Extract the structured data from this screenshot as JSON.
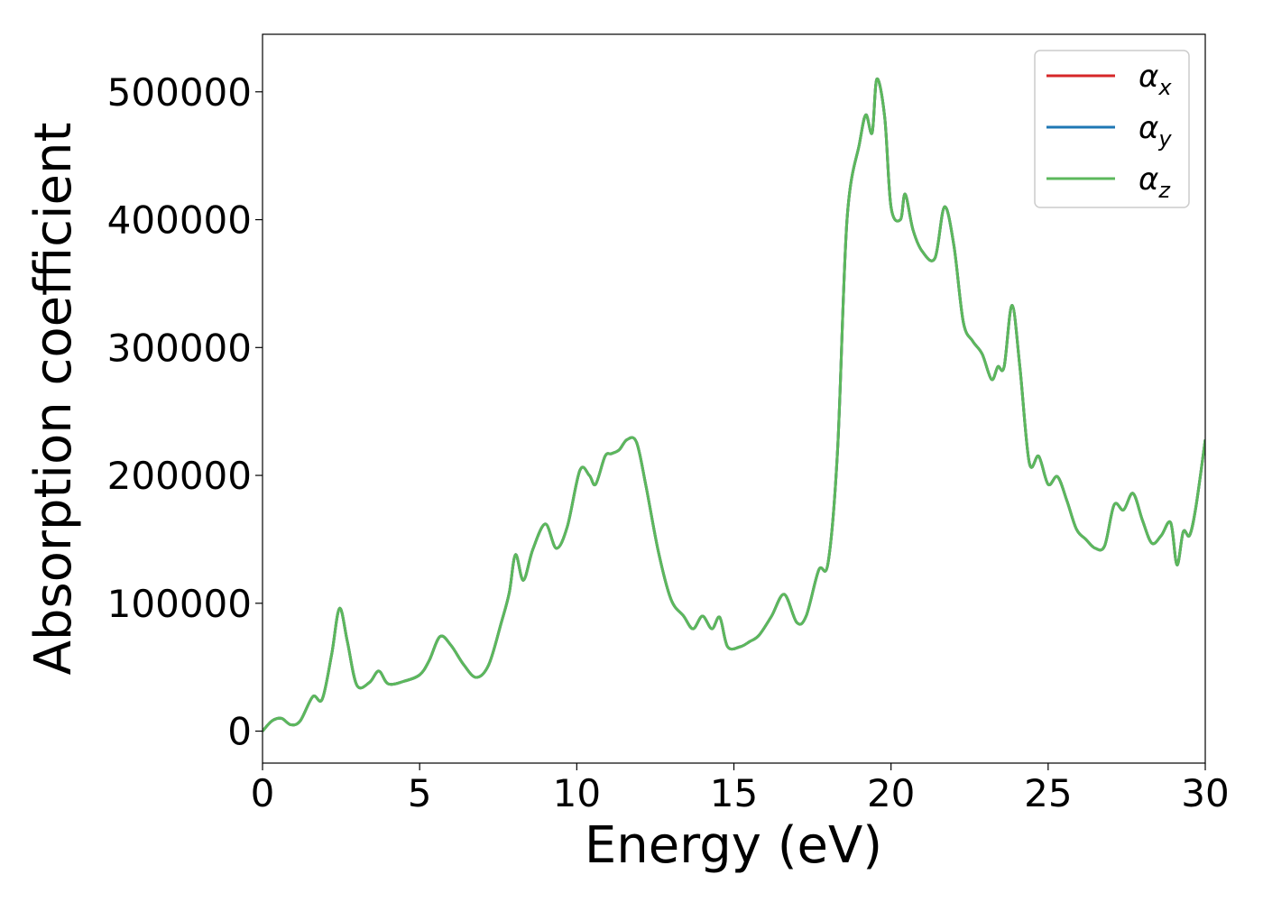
{
  "chart_data": {
    "type": "line",
    "title": "",
    "xlabel": "Energy (eV)",
    "ylabel": "Absorption coefficient",
    "xlim": [
      0,
      30
    ],
    "ylim": [
      -25000,
      545000
    ],
    "x_ticks": [
      0,
      5,
      10,
      15,
      20,
      25,
      30
    ],
    "x_tick_labels": [
      "0",
      "5",
      "10",
      "15",
      "20",
      "25",
      "30"
    ],
    "y_ticks": [
      0,
      100000,
      200000,
      300000,
      400000,
      500000
    ],
    "y_tick_labels": [
      "0",
      "100000",
      "200000",
      "300000",
      "400000",
      "500000"
    ],
    "grid": false,
    "legend_position": "top-right",
    "x": [
      0,
      0.3,
      0.6,
      0.9,
      1.2,
      1.6,
      1.9,
      2.2,
      2.45,
      2.7,
      3.0,
      3.4,
      3.7,
      4.0,
      4.5,
      5.0,
      5.3,
      5.65,
      6.0,
      6.4,
      6.8,
      7.2,
      7.6,
      7.85,
      8.05,
      8.3,
      8.6,
      9.0,
      9.35,
      9.7,
      10.1,
      10.4,
      10.6,
      10.9,
      11.1,
      11.35,
      11.6,
      11.9,
      12.2,
      12.6,
      13.0,
      13.4,
      13.7,
      14.0,
      14.3,
      14.55,
      14.8,
      15.2,
      15.5,
      15.8,
      16.2,
      16.6,
      17.0,
      17.3,
      17.7,
      18.0,
      18.3,
      18.6,
      19.0,
      19.2,
      19.4,
      19.55,
      19.8,
      20.0,
      20.3,
      20.45,
      20.7,
      21.0,
      21.4,
      21.7,
      22.0,
      22.3,
      22.6,
      22.9,
      23.2,
      23.4,
      23.6,
      23.85,
      24.1,
      24.4,
      24.7,
      25.0,
      25.3,
      25.6,
      25.9,
      26.2,
      26.5,
      26.8,
      27.1,
      27.4,
      27.7,
      28.0,
      28.3,
      28.6,
      28.9,
      29.1,
      29.3,
      29.5,
      29.7,
      30.0
    ],
    "series": [
      {
        "name": "αx",
        "color": "#d62728",
        "values": [
          0,
          8000,
          10000,
          5000,
          8000,
          27000,
          25000,
          60000,
          96000,
          70000,
          36000,
          38000,
          47000,
          37000,
          39000,
          44000,
          55000,
          74000,
          67000,
          52000,
          42000,
          52000,
          85000,
          108000,
          138000,
          118000,
          142000,
          162000,
          143000,
          160000,
          204000,
          200000,
          193000,
          215000,
          217000,
          220000,
          228000,
          226000,
          192000,
          140000,
          103000,
          90000,
          80000,
          90000,
          80000,
          89000,
          66000,
          66000,
          70000,
          75000,
          90000,
          107000,
          85000,
          90000,
          126000,
          132000,
          220000,
          400000,
          460000,
          482000,
          468000,
          510000,
          480000,
          410000,
          400000,
          420000,
          392000,
          375000,
          370000,
          410000,
          380000,
          320000,
          305000,
          295000,
          275000,
          285000,
          285000,
          333000,
          285000,
          210000,
          215000,
          193000,
          199000,
          180000,
          158000,
          150000,
          143000,
          145000,
          177000,
          173000,
          186000,
          165000,
          147000,
          153000,
          163000,
          130000,
          156000,
          153000,
          175000,
          228000
        ]
      },
      {
        "name": "αy",
        "color": "#1f77b4",
        "values": [
          0,
          8000,
          10000,
          5000,
          8000,
          27000,
          25000,
          60000,
          96000,
          70000,
          36000,
          38000,
          47000,
          37000,
          39000,
          44000,
          55000,
          74000,
          67000,
          52000,
          42000,
          52000,
          85000,
          108000,
          138000,
          118000,
          142000,
          162000,
          143000,
          160000,
          204000,
          200000,
          193000,
          215000,
          217000,
          220000,
          228000,
          226000,
          192000,
          140000,
          103000,
          90000,
          80000,
          90000,
          80000,
          89000,
          66000,
          66000,
          70000,
          75000,
          90000,
          107000,
          85000,
          90000,
          126000,
          132000,
          220000,
          400000,
          460000,
          482000,
          468000,
          510000,
          480000,
          410000,
          400000,
          420000,
          392000,
          375000,
          370000,
          410000,
          380000,
          320000,
          305000,
          295000,
          275000,
          285000,
          285000,
          333000,
          285000,
          210000,
          215000,
          193000,
          199000,
          180000,
          158000,
          150000,
          143000,
          145000,
          177000,
          173000,
          186000,
          165000,
          147000,
          153000,
          163000,
          130000,
          156000,
          153000,
          175000,
          228000
        ]
      },
      {
        "name": "αz",
        "color": "#5cb85c",
        "values": [
          0,
          8000,
          10000,
          5000,
          8000,
          27000,
          25000,
          60000,
          96000,
          70000,
          36000,
          38000,
          47000,
          37000,
          39000,
          44000,
          55000,
          74000,
          67000,
          52000,
          42000,
          52000,
          85000,
          108000,
          138000,
          118000,
          142000,
          162000,
          143000,
          160000,
          204000,
          200000,
          193000,
          215000,
          217000,
          220000,
          228000,
          226000,
          192000,
          140000,
          103000,
          90000,
          80000,
          90000,
          80000,
          89000,
          66000,
          66000,
          70000,
          75000,
          90000,
          107000,
          85000,
          90000,
          126000,
          132000,
          220000,
          400000,
          460000,
          482000,
          468000,
          510000,
          480000,
          410000,
          400000,
          420000,
          392000,
          375000,
          370000,
          410000,
          380000,
          320000,
          305000,
          295000,
          275000,
          285000,
          285000,
          333000,
          285000,
          210000,
          215000,
          193000,
          199000,
          180000,
          158000,
          150000,
          143000,
          145000,
          177000,
          173000,
          186000,
          165000,
          147000,
          153000,
          163000,
          130000,
          156000,
          153000,
          175000,
          228000
        ]
      }
    ]
  }
}
